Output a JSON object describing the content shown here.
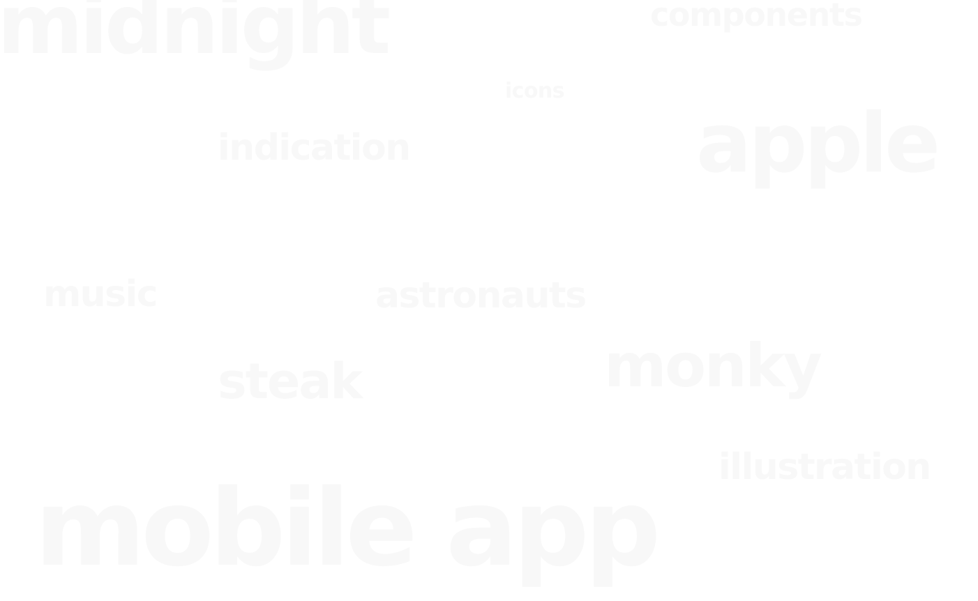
{
  "colors": {
    "background": "#ffffff",
    "word": "#f8f8f8"
  },
  "tag_cloud": {
    "words": {
      "midnight": "midnight",
      "components": "components",
      "icons": "icons",
      "indication": "indication",
      "apple": "apple",
      "music": "music",
      "astronauts": "astronauts",
      "steak": "steak",
      "monky": "monky",
      "illustration": "illustration",
      "mobile_app": "mobile app"
    }
  }
}
